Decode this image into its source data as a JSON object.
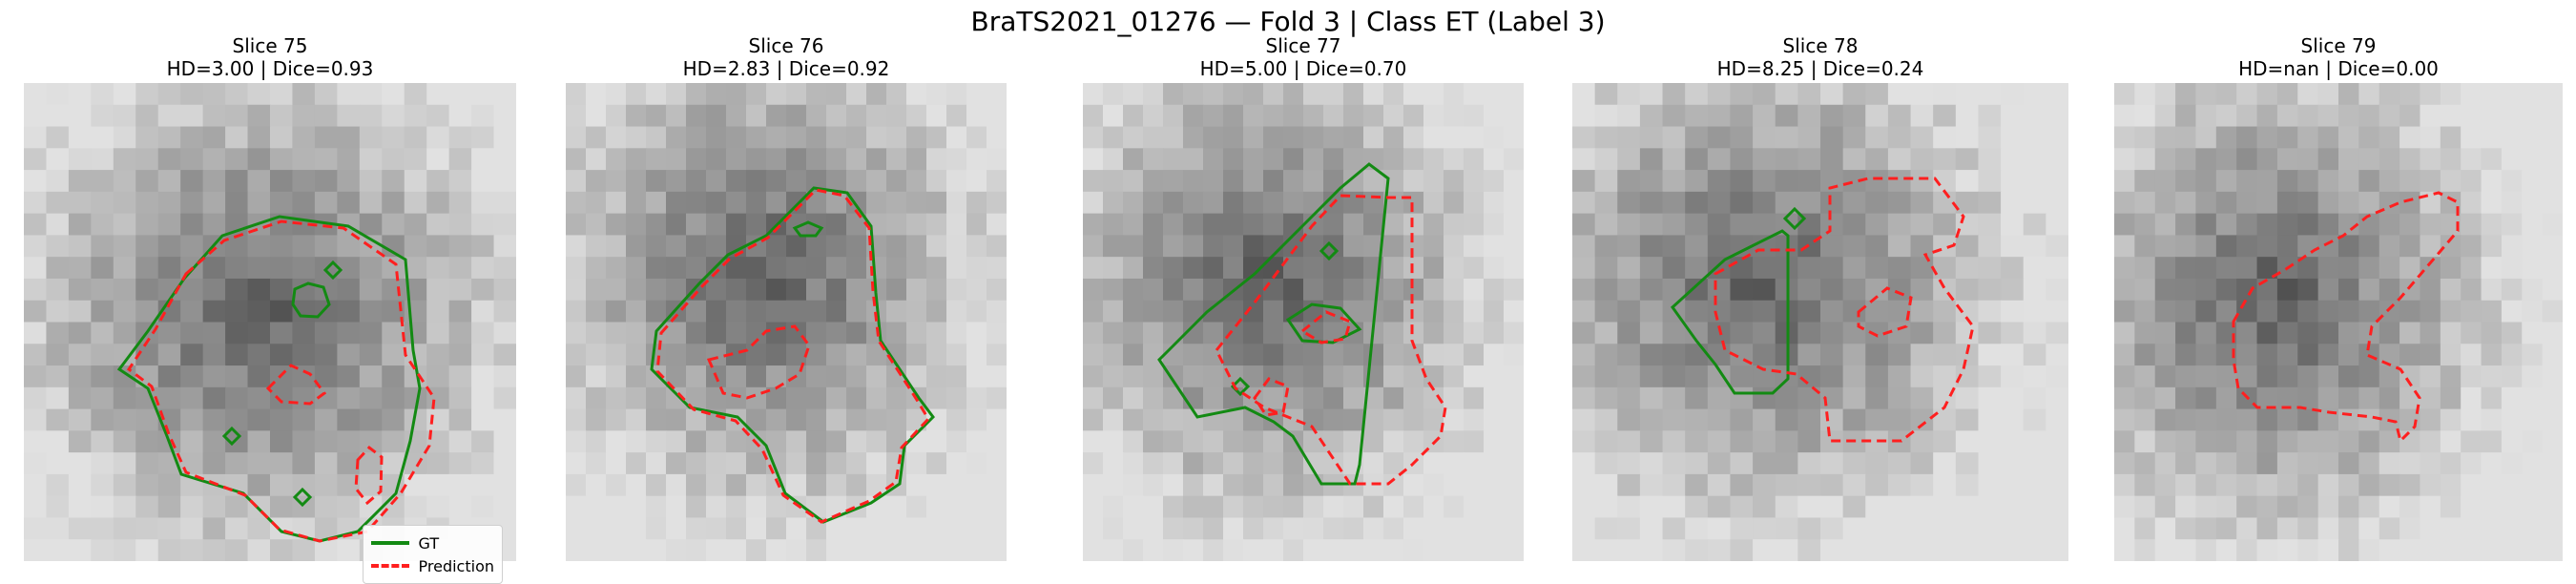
{
  "figure_title": "BraTS2021_01276 — Fold 3 | Class ET (Label 3)",
  "legend": {
    "gt_label": "GT",
    "pred_label": "Prediction"
  },
  "colors": {
    "gt": "#138a13",
    "pred": "#ff1f1f"
  },
  "panels": [
    {
      "title": "Slice 75",
      "metrics": "HD=3.00 | Dice=0.93"
    },
    {
      "title": "Slice 76",
      "metrics": "HD=2.83 | Dice=0.92"
    },
    {
      "title": "Slice 77",
      "metrics": "HD=5.00 | Dice=0.70"
    },
    {
      "title": "Slice 78",
      "metrics": "HD=8.25 | Dice=0.24"
    },
    {
      "title": "Slice 79",
      "metrics": "HD=nan | Dice=0.00"
    }
  ]
}
